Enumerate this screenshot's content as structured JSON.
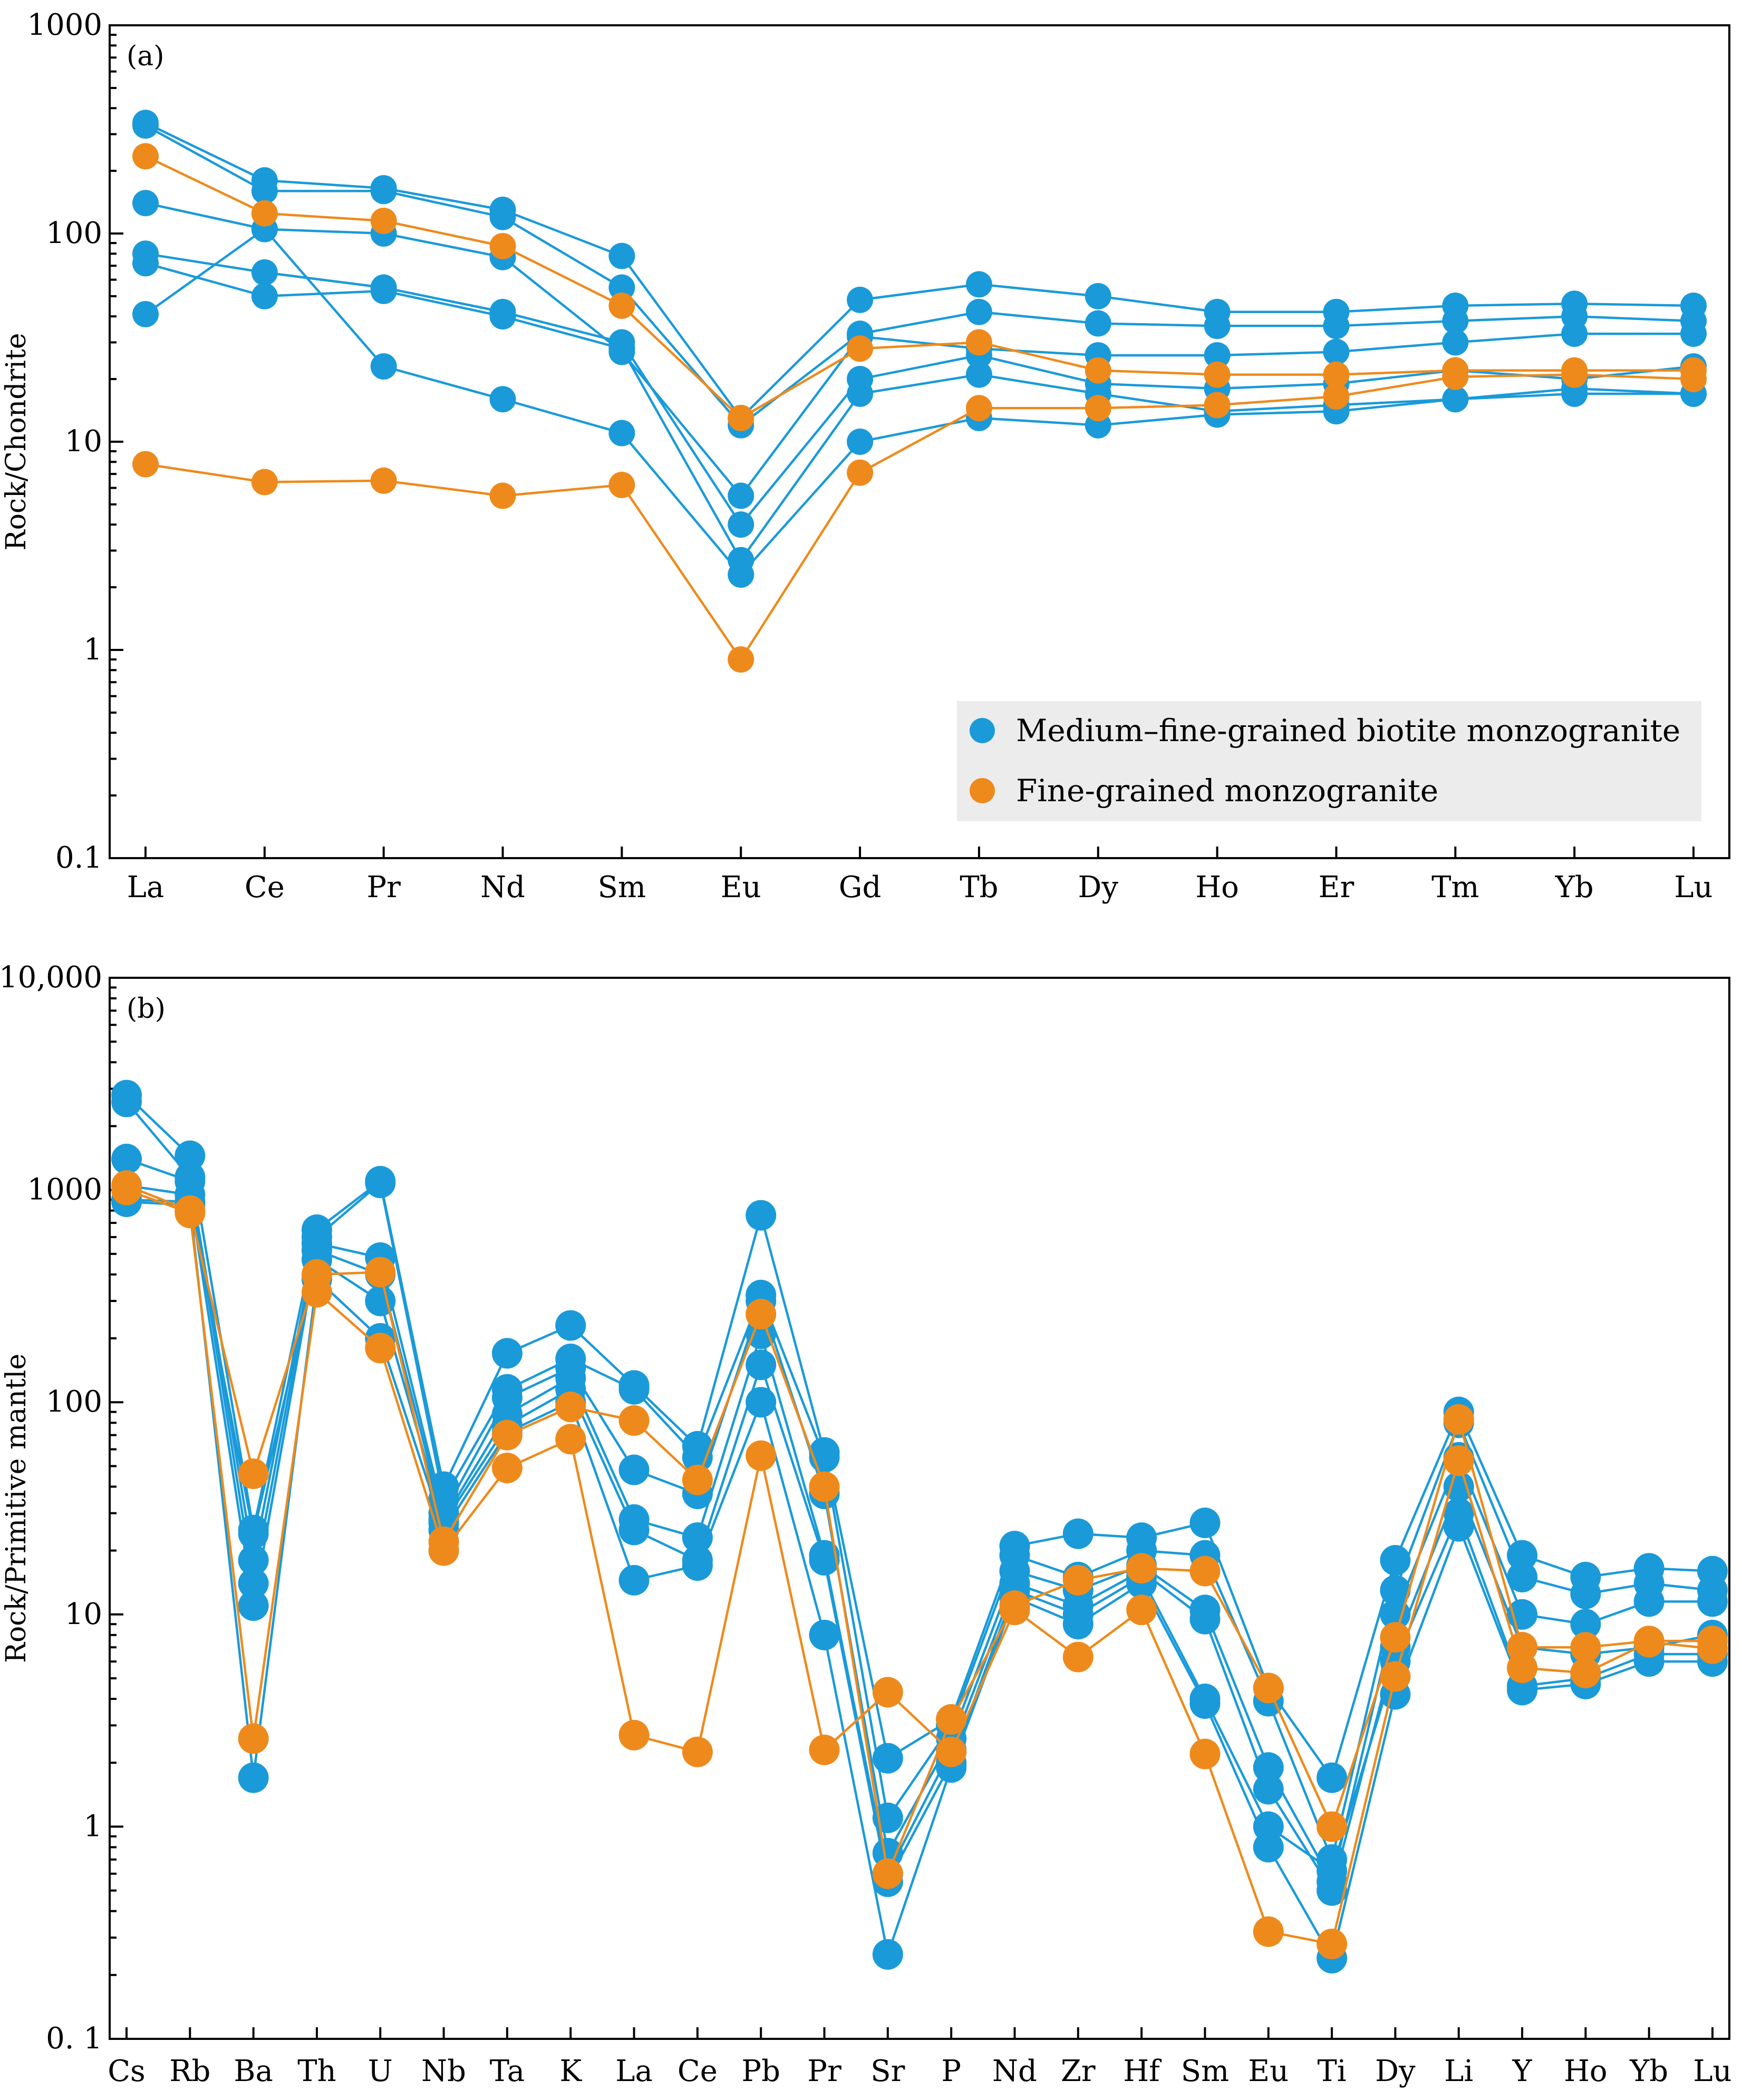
{
  "colors": {
    "medium": "#1a9ad9",
    "fine": "#ee8a1c"
  },
  "chart_data": [
    {
      "type": "line",
      "panel_label": "(a)",
      "ylabel": "Rock/Chondrite",
      "yscale": "log",
      "ylim": [
        0.1,
        1000
      ],
      "yticks": [
        {
          "value": 0.1,
          "label": "0.1"
        },
        {
          "value": 1,
          "label": "1"
        },
        {
          "value": 10,
          "label": "10"
        },
        {
          "value": 100,
          "label": "100"
        },
        {
          "value": 1000,
          "label": "1000"
        }
      ],
      "categories": [
        "La",
        "Ce",
        "Pr",
        "Nd",
        "Sm",
        "Eu",
        "Gd",
        "Tb",
        "Dy",
        "Ho",
        "Er",
        "Tm",
        "Yb",
        "Lu"
      ],
      "legend": {
        "position": "bottom-right",
        "entries": [
          {
            "group": "medium",
            "label": "Medium–fine-grained biotite monzogranite"
          },
          {
            "group": "fine",
            "label": "Fine-grained  monzogranite"
          }
        ]
      },
      "series": [
        {
          "group": "medium",
          "values": [
            340,
            180,
            165,
            130,
            78,
            13,
            48,
            57,
            50,
            42,
            42,
            45,
            46,
            45
          ]
        },
        {
          "group": "medium",
          "values": [
            330,
            160,
            160,
            120,
            55,
            12,
            33,
            42,
            37,
            36,
            36,
            38,
            40,
            38
          ]
        },
        {
          "group": "medium",
          "values": [
            140,
            105,
            100,
            77,
            27,
            5.5,
            32,
            28,
            26,
            26,
            27,
            30,
            33,
            33
          ]
        },
        {
          "group": "medium",
          "values": [
            80,
            65,
            55,
            42,
            30,
            4,
            20,
            26,
            19,
            18,
            19,
            22,
            20,
            23
          ]
        },
        {
          "group": "medium",
          "values": [
            72,
            50,
            53,
            40,
            28,
            2.7,
            17,
            21,
            17,
            14,
            15,
            16,
            18,
            17
          ]
        },
        {
          "group": "medium",
          "values": [
            41,
            105,
            23,
            16,
            11,
            2.3,
            10,
            13,
            12,
            13.5,
            14,
            16,
            17,
            17
          ]
        },
        {
          "group": "fine",
          "values": [
            235,
            125,
            115,
            87,
            45,
            13,
            28,
            30,
            22,
            21,
            21,
            22,
            22,
            22
          ]
        },
        {
          "group": "fine",
          "values": [
            7.8,
            6.4,
            6.5,
            5.5,
            6.2,
            0.9,
            7.1,
            14.5,
            14.5,
            15,
            16.5,
            20.5,
            21,
            20
          ]
        }
      ]
    },
    {
      "type": "line",
      "panel_label": "(b)",
      "ylabel": "Rock/Primitive mantle",
      "yscale": "log",
      "ylim": [
        0.1,
        10000
      ],
      "yticks": [
        {
          "value": 0.1,
          "label": "0. 1"
        },
        {
          "value": 1,
          "label": "1"
        },
        {
          "value": 10,
          "label": "10"
        },
        {
          "value": 100,
          "label": "100"
        },
        {
          "value": 1000,
          "label": "1000"
        },
        {
          "value": 10000,
          "label": "10,000"
        }
      ],
      "categories": [
        "Cs",
        "Rb",
        "Ba",
        "Th",
        "U",
        "Nb",
        "Ta",
        "K",
        "La",
        "Ce",
        "Pb",
        "Pr",
        "Sr",
        "P",
        "Nd",
        "Zr",
        "Hf",
        "Sm",
        "Eu",
        "Ti",
        "Dy",
        "Li",
        "Y",
        "Ho",
        "Yb",
        "Lu"
      ],
      "series": [
        {
          "group": "medium",
          "values": [
            2800,
            1450,
            25,
            650,
            1100,
            40,
            170,
            230,
            120,
            62,
            760,
            58,
            2.1,
            3.2,
            21,
            24,
            23,
            27,
            4.5,
            1.7,
            18,
            90,
            19,
            15,
            16.5,
            16
          ]
        },
        {
          "group": "medium",
          "values": [
            2600,
            1150,
            18,
            600,
            1080,
            35,
            115,
            160,
            115,
            55,
            320,
            55,
            1.1,
            3.0,
            19,
            15,
            20,
            19,
            3.9,
            0.7,
            13,
            80,
            15,
            12.5,
            14,
            13
          ]
        },
        {
          "group": "medium",
          "values": [
            1400,
            1100,
            14,
            560,
            480,
            30,
            105,
            145,
            48,
            37,
            300,
            37,
            0.75,
            2.6,
            16,
            13,
            17,
            10.5,
            1.9,
            0.55,
            10,
            55,
            10,
            9,
            11.5,
            11.5
          ]
        },
        {
          "group": "medium",
          "values": [
            1050,
            950,
            11,
            520,
            400,
            28,
            88,
            130,
            28,
            23,
            210,
            19,
            0.6,
            2.3,
            14,
            11,
            16,
            9.5,
            1.5,
            0.5,
            7,
            40,
            7,
            6.5,
            7,
            8
          ]
        },
        {
          "group": "medium",
          "values": [
            900,
            880,
            24,
            470,
            300,
            27,
            78,
            115,
            25,
            18,
            150,
            18,
            0.55,
            2.0,
            13,
            10,
            15,
            4,
            1.0,
            0.62,
            6,
            30,
            4.6,
            5,
            6.5,
            6.5
          ]
        },
        {
          "group": "medium",
          "values": [
            880,
            850,
            1.7,
            380,
            200,
            25,
            72,
            100,
            14.5,
            17,
            100,
            8,
            0.25,
            1.9,
            12,
            9,
            14,
            3.8,
            0.8,
            0.24,
            4.2,
            26,
            4.4,
            4.7,
            6,
            6
          ]
        },
        {
          "group": "fine",
          "values": [
            1050,
            800,
            46,
            400,
            410,
            22,
            70,
            95,
            82,
            43,
            260,
            40,
            0.6,
            3.2,
            11,
            14.5,
            16.5,
            16,
            4.5,
            1.0,
            7.8,
            83,
            7,
            7,
            7.5,
            7.5
          ]
        },
        {
          "group": "fine",
          "values": [
            1000,
            780,
            2.6,
            330,
            180,
            20,
            49,
            67,
            2.7,
            2.25,
            56,
            2.3,
            4.3,
            2.25,
            10.5,
            6.3,
            10.5,
            2.2,
            0.32,
            0.28,
            5.1,
            53,
            5.6,
            5.3,
            7.4,
            6.9
          ]
        }
      ]
    }
  ]
}
